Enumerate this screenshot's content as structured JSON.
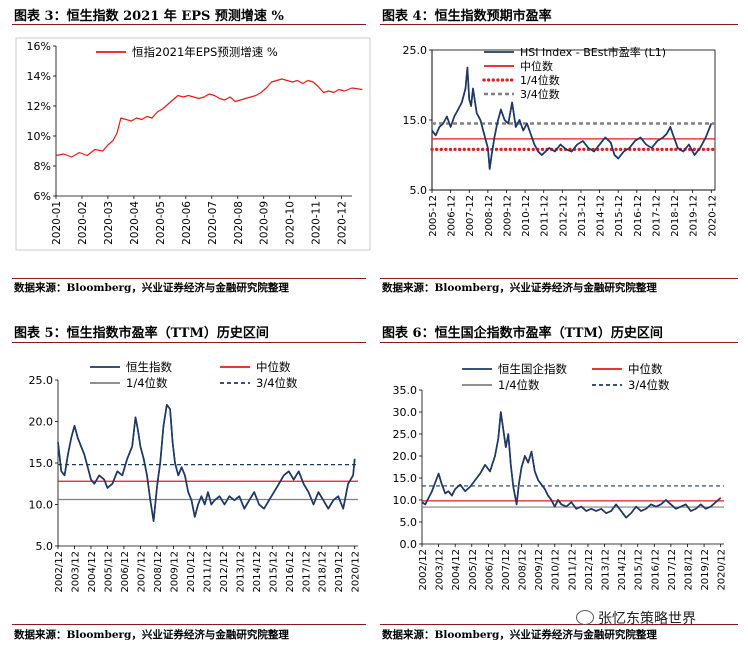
{
  "panels": {
    "p3": {
      "title": "图表 3：恒生指数 2021 年 EPS 预测增速 %",
      "source": "数据来源：Bloomberg，兴业证券经济与金融研究院整理"
    },
    "p4": {
      "title": "图表 4：恒生指数预期市盈率",
      "source": "数据来源：Bloomberg，兴业证券经济与金融研究院整理"
    },
    "p5": {
      "title": "图表 5：恒生指数市盈率（TTM）历史区间",
      "source": "数据来源：Bloomberg，兴业证券经济与金融研究院整理"
    },
    "p6": {
      "title": "图表 6：恒生国企指数市盈率（TTM）历史区间",
      "source": "数据来源：Bloomberg，兴业证券经济与金融研究院整理"
    }
  },
  "watermark": "张忆东策略世界",
  "colors": {
    "red": "#e8191b",
    "navy": "#1f3864",
    "grey": "#7f7f7f",
    "dashgrey": "#808080",
    "rule": "#8a1a1a"
  },
  "chart_data": [
    {
      "id": "c3",
      "type": "line",
      "title": "",
      "xlabel": "",
      "ylabel": "",
      "ylim": [
        0.06,
        0.16
      ],
      "yticks": [
        0.06,
        0.08,
        0.1,
        0.12,
        0.14,
        0.16
      ],
      "ytick_labels": [
        "6%",
        "8%",
        "10%",
        "12%",
        "14%",
        "16%"
      ],
      "xtick_labels": [
        "2020-01",
        "2020-02",
        "2020-03",
        "2020-04",
        "2020-05",
        "2020-06",
        "2020-07",
        "2020-08",
        "2020-09",
        "2020-10",
        "2020-11",
        "2020-12"
      ],
      "legend_position": "top-center",
      "series": [
        {
          "name": "恒指2021年EPS预测增速    %",
          "color": "#e8191b",
          "style": "solid",
          "x": [
            0,
            0.3,
            0.6,
            0.9,
            1.2,
            1.5,
            1.8,
            2.0,
            2.2,
            2.35,
            2.5,
            2.7,
            2.9,
            3.1,
            3.3,
            3.5,
            3.7,
            3.9,
            4.1,
            4.3,
            4.5,
            4.7,
            4.9,
            5.1,
            5.3,
            5.5,
            5.7,
            5.9,
            6.1,
            6.3,
            6.5,
            6.7,
            6.9,
            7.1,
            7.3,
            7.5,
            7.7,
            7.9,
            8.1,
            8.3,
            8.5,
            8.7,
            8.9,
            9.1,
            9.3,
            9.5,
            9.7,
            9.9,
            10.1,
            10.3,
            10.5,
            10.7,
            10.9,
            11.1,
            11.4,
            11.8
          ],
          "y": [
            0.087,
            0.088,
            0.086,
            0.089,
            0.087,
            0.091,
            0.09,
            0.094,
            0.097,
            0.102,
            0.112,
            0.111,
            0.11,
            0.112,
            0.111,
            0.113,
            0.112,
            0.116,
            0.118,
            0.121,
            0.124,
            0.127,
            0.126,
            0.127,
            0.126,
            0.125,
            0.126,
            0.128,
            0.127,
            0.125,
            0.124,
            0.126,
            0.123,
            0.124,
            0.125,
            0.126,
            0.127,
            0.129,
            0.132,
            0.136,
            0.137,
            0.138,
            0.137,
            0.136,
            0.137,
            0.135,
            0.137,
            0.136,
            0.133,
            0.129,
            0.13,
            0.129,
            0.131,
            0.13,
            0.132,
            0.131
          ]
        }
      ]
    },
    {
      "id": "c4",
      "type": "line",
      "title": "",
      "xlabel": "",
      "ylabel": "",
      "ylim": [
        5,
        25
      ],
      "yticks": [
        5,
        15,
        25
      ],
      "ytick_labels": [
        "5.0",
        "15.0",
        "25.0"
      ],
      "xtick_labels": [
        "2005-12",
        "2006-12",
        "2007-12",
        "2008-12",
        "2009-12",
        "2010-12",
        "2011-12",
        "2012-12",
        "2013-12",
        "2014-12",
        "2015-12",
        "2016-12",
        "2017-12",
        "2018-12",
        "2019-12",
        "2020-12"
      ],
      "legend_position": "top-center",
      "series": [
        {
          "name": "HSI Index - BEst市盈率 (L1)",
          "color": "#1f3864",
          "style": "solid",
          "x": [
            0,
            0.2,
            0.4,
            0.6,
            0.8,
            1.0,
            1.2,
            1.4,
            1.6,
            1.8,
            1.9,
            2.0,
            2.1,
            2.2,
            2.4,
            2.6,
            2.8,
            3.0,
            3.1,
            3.2,
            3.35,
            3.5,
            3.7,
            3.9,
            4.1,
            4.3,
            4.5,
            4.7,
            4.9,
            5.1,
            5.3,
            5.5,
            5.7,
            5.9,
            6.1,
            6.3,
            6.6,
            6.9,
            7.2,
            7.5,
            7.8,
            8.1,
            8.4,
            8.7,
            9.0,
            9.3,
            9.6,
            9.8,
            10.0,
            10.3,
            10.6,
            10.9,
            11.2,
            11.5,
            11.8,
            12.1,
            12.4,
            12.6,
            12.8,
            13.0,
            13.2,
            13.5,
            13.8,
            14.1,
            14.4,
            14.7,
            15.0
          ],
          "y": [
            13.5,
            12.8,
            14.0,
            14.5,
            15.5,
            14.0,
            15.5,
            16.5,
            17.5,
            19.5,
            22.5,
            18.0,
            17.0,
            19.5,
            16.0,
            15.0,
            13.0,
            11.0,
            8.0,
            10.0,
            12.5,
            14.5,
            16.5,
            15.0,
            14.5,
            17.5,
            14.0,
            15.0,
            13.5,
            14.5,
            13.0,
            11.5,
            10.5,
            10.0,
            10.5,
            11.0,
            10.5,
            11.5,
            10.8,
            10.5,
            11.5,
            12.0,
            11.0,
            10.5,
            11.5,
            12.5,
            11.8,
            10.0,
            9.5,
            10.5,
            11.0,
            12.0,
            12.5,
            11.5,
            11.0,
            12.0,
            12.5,
            13.0,
            14.0,
            12.5,
            11.0,
            10.5,
            11.5,
            10.0,
            11.0,
            12.5,
            14.5
          ]
        },
        {
          "name": "中位数",
          "color": "#e8191b",
          "style": "solid",
          "value": 12.3
        },
        {
          "name": "1/4位数",
          "color": "#e8191b",
          "style": "dotted",
          "value": 10.8
        },
        {
          "name": "3/4位数",
          "color": "#808080",
          "style": "dashed",
          "value": 14.5
        }
      ]
    },
    {
      "id": "c5",
      "type": "line",
      "title": "",
      "xlabel": "",
      "ylabel": "",
      "ylim": [
        5,
        25
      ],
      "yticks": [
        5,
        10,
        15,
        20,
        25
      ],
      "ytick_labels": [
        "5.0",
        "10.0",
        "15.0",
        "20.0",
        "25.0"
      ],
      "xtick_labels": [
        "2002/12",
        "2003/12",
        "2004/12",
        "2005/12",
        "2006/12",
        "2007/12",
        "2008/12",
        "2009/12",
        "2010/12",
        "2011/12",
        "2012/12",
        "2013/12",
        "2014/12",
        "2015/12",
        "2016/12",
        "2017/12",
        "2018/12",
        "2019/12",
        "2020/12"
      ],
      "legend_position": "top",
      "series": [
        {
          "name": "恒生指数",
          "color": "#1f3864",
          "style": "solid",
          "x": [
            0,
            0.2,
            0.4,
            0.6,
            0.8,
            1.0,
            1.2,
            1.4,
            1.6,
            1.8,
            2.0,
            2.2,
            2.5,
            2.8,
            3.0,
            3.3,
            3.6,
            3.9,
            4.2,
            4.5,
            4.7,
            4.85,
            5.0,
            5.2,
            5.4,
            5.6,
            5.8,
            6.0,
            6.1,
            6.2,
            6.4,
            6.6,
            6.8,
            6.95,
            7.1,
            7.3,
            7.5,
            7.7,
            7.9,
            8.1,
            8.3,
            8.5,
            8.7,
            8.9,
            9.1,
            9.3,
            9.5,
            9.8,
            10.1,
            10.4,
            10.7,
            11.0,
            11.3,
            11.6,
            11.9,
            12.2,
            12.5,
            12.8,
            13.1,
            13.4,
            13.7,
            14.0,
            14.3,
            14.6,
            14.9,
            15.2,
            15.5,
            15.8,
            16.1,
            16.4,
            16.7,
            17.0,
            17.3,
            17.6,
            17.9,
            18.0
          ],
          "y": [
            17.5,
            14.0,
            13.5,
            16.0,
            18.0,
            19.5,
            18.0,
            17.0,
            16.0,
            14.5,
            13.0,
            12.5,
            13.5,
            13.0,
            12.0,
            12.5,
            14.0,
            13.5,
            15.5,
            17.0,
            20.5,
            19.0,
            17.0,
            15.5,
            13.5,
            10.5,
            8.0,
            12.0,
            13.5,
            15.0,
            19.5,
            22.0,
            21.5,
            17.5,
            15.0,
            13.5,
            14.5,
            13.5,
            11.5,
            10.5,
            8.5,
            10.0,
            11.0,
            10.0,
            11.5,
            10.0,
            10.5,
            11.0,
            10.0,
            11.0,
            10.5,
            11.0,
            9.5,
            10.5,
            11.5,
            10.0,
            9.5,
            10.5,
            11.5,
            12.5,
            13.5,
            14.0,
            13.0,
            14.0,
            12.5,
            11.5,
            10.0,
            11.5,
            10.5,
            9.5,
            10.5,
            11.0,
            9.5,
            12.5,
            13.5,
            15.5
          ]
        },
        {
          "name": "中位数",
          "color": "#e8191b",
          "style": "solid",
          "value": 12.8
        },
        {
          "name": "1/4位数",
          "color": "#7f7f7f",
          "style": "solid",
          "value": 10.6
        },
        {
          "name": "3/4位数",
          "color": "#1f3864",
          "style": "dashed",
          "value": 14.8
        }
      ]
    },
    {
      "id": "c6",
      "type": "line",
      "title": "",
      "xlabel": "",
      "ylabel": "",
      "ylim": [
        0,
        35
      ],
      "yticks": [
        0,
        5,
        10,
        15,
        20,
        25,
        30,
        35
      ],
      "ytick_labels": [
        "0.0",
        "5.0",
        "10.0",
        "15.0",
        "20.0",
        "25.0",
        "30.0",
        "35.0"
      ],
      "xtick_labels": [
        "2002/12",
        "2003/12",
        "2004/12",
        "2005/12",
        "2006/12",
        "2007/12",
        "2008/12",
        "2009/12",
        "2010/12",
        "2011/12",
        "2012/12",
        "2013/12",
        "2014/12",
        "2015/12",
        "2016/12",
        "2017/12",
        "2018/12",
        "2019/12",
        "2020/12"
      ],
      "legend_position": "top",
      "series": [
        {
          "name": "恒生国企指数",
          "color": "#1f3864",
          "style": "solid",
          "x": [
            0,
            0.2,
            0.4,
            0.6,
            0.8,
            1.0,
            1.2,
            1.4,
            1.6,
            1.8,
            2.0,
            2.3,
            2.6,
            2.9,
            3.2,
            3.5,
            3.8,
            4.1,
            4.4,
            4.6,
            4.75,
            4.9,
            5.05,
            5.2,
            5.35,
            5.5,
            5.7,
            5.85,
            6.0,
            6.2,
            6.4,
            6.6,
            6.8,
            7.0,
            7.2,
            7.4,
            7.6,
            7.8,
            8.0,
            8.2,
            8.4,
            8.7,
            9.0,
            9.3,
            9.6,
            9.9,
            10.2,
            10.5,
            10.8,
            11.1,
            11.4,
            11.7,
            12.0,
            12.3,
            12.6,
            12.9,
            13.2,
            13.5,
            13.8,
            14.1,
            14.4,
            14.7,
            15.0,
            15.3,
            15.6,
            15.9,
            16.2,
            16.5,
            16.8,
            17.1,
            17.4,
            17.7,
            18.0
          ],
          "y": [
            9.5,
            9.0,
            10.5,
            12.0,
            14.0,
            16.0,
            13.5,
            11.5,
            12.0,
            11.0,
            12.5,
            13.5,
            12.0,
            13.0,
            14.5,
            16.0,
            18.0,
            16.5,
            20.0,
            24.0,
            30.0,
            26.0,
            22.0,
            25.0,
            18.0,
            13.0,
            9.0,
            14.0,
            17.5,
            20.0,
            18.5,
            21.0,
            16.5,
            14.5,
            13.5,
            12.5,
            11.0,
            10.0,
            8.5,
            10.0,
            9.0,
            8.5,
            9.5,
            8.0,
            8.5,
            7.5,
            8.0,
            7.5,
            8.0,
            7.0,
            7.5,
            9.0,
            7.5,
            6.0,
            7.0,
            8.5,
            7.5,
            8.0,
            9.0,
            8.5,
            9.0,
            10.0,
            9.0,
            8.0,
            8.5,
            9.0,
            7.5,
            8.0,
            9.0,
            8.0,
            8.5,
            9.5,
            10.5
          ]
        },
        {
          "name": "中位数",
          "color": "#e8191b",
          "style": "solid",
          "value": 9.8
        },
        {
          "name": "1/4位数",
          "color": "#7f7f7f",
          "style": "solid",
          "value": 8.4
        },
        {
          "name": "3/4位数",
          "color": "#1f3864",
          "style": "dashed",
          "value": 13.2
        }
      ]
    }
  ]
}
